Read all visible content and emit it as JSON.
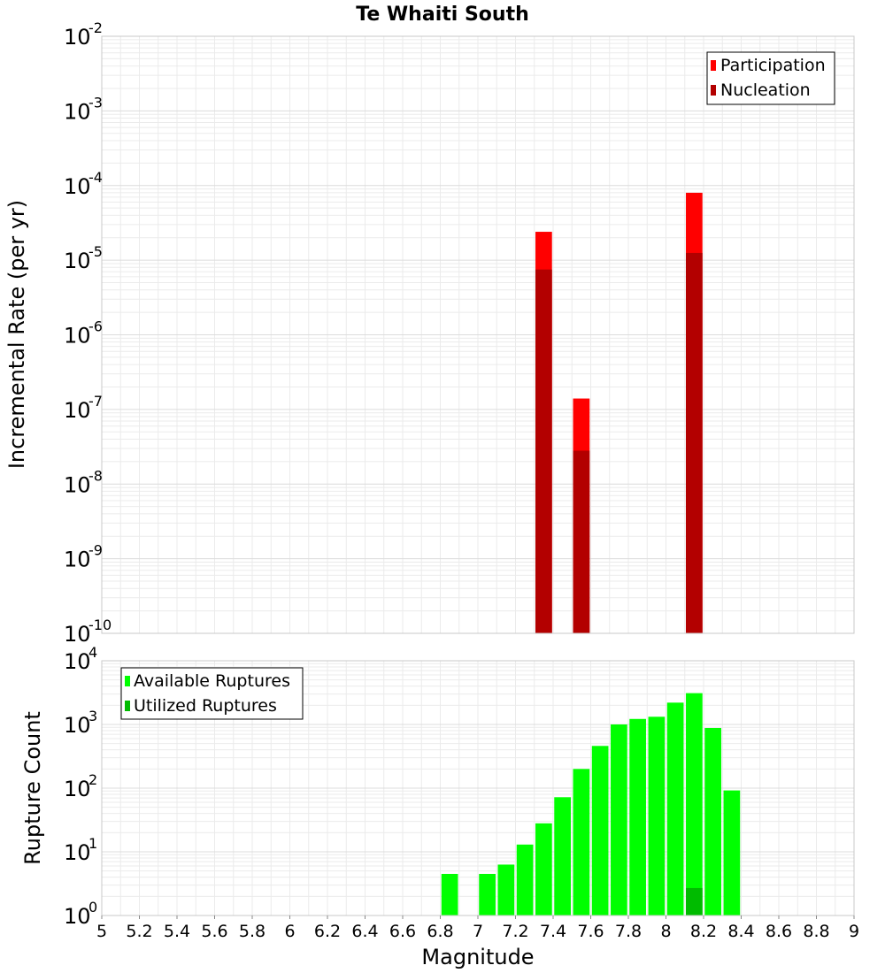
{
  "chart_data": [
    {
      "type": "bar",
      "title": "Te Whaiti South",
      "xlabel": "",
      "ylabel": "Incremental Rate (per yr)",
      "yscale": "log",
      "ylim_exponents": [
        -10,
        -2
      ],
      "xlim": [
        5,
        9
      ],
      "bin_width": 0.1,
      "legend_position": "top-right",
      "series": [
        {
          "name": "Participation",
          "color": "#ff0000",
          "x": [
            7.35,
            7.55,
            8.15
          ],
          "values": [
            2.4e-05,
            1.4e-07,
            8e-05
          ]
        },
        {
          "name": "Nucleation",
          "color": "#b30000",
          "x": [
            7.35,
            7.55,
            8.15
          ],
          "values": [
            7.5e-06,
            2.8e-08,
            1.25e-05
          ]
        }
      ]
    },
    {
      "type": "bar",
      "title": "",
      "xlabel": "Magnitude",
      "ylabel": "Rupture Count",
      "yscale": "log",
      "ylim_exponents": [
        0,
        4
      ],
      "xlim": [
        5,
        9
      ],
      "bin_width": 0.1,
      "legend_position": "top-left",
      "series": [
        {
          "name": "Available Ruptures",
          "color": "#00ff00",
          "x": [
            6.85,
            6.95,
            7.05,
            7.15,
            7.25,
            7.35,
            7.45,
            7.55,
            7.65,
            7.75,
            7.85,
            7.95,
            8.05,
            8.15,
            8.25,
            8.35
          ],
          "values": [
            4.5,
            1,
            4.5,
            6.3,
            13,
            28,
            72,
            200,
            460,
            1000,
            1220,
            1320,
            2200,
            3100,
            880,
            92
          ]
        },
        {
          "name": "Utilized Ruptures",
          "color": "#00bb00",
          "x": [
            7.35,
            7.55,
            8.15
          ],
          "values": [
            1,
            1,
            2.7
          ]
        }
      ]
    }
  ],
  "x_ticks": [
    "5",
    "5.2",
    "5.4",
    "5.6",
    "5.8",
    "6",
    "6.2",
    "6.4",
    "6.6",
    "6.8",
    "7",
    "7.2",
    "7.4",
    "7.6",
    "7.8",
    "8",
    "8.2",
    "8.4",
    "8.6",
    "8.8",
    "9"
  ],
  "top_y_ticks": {
    "base": "10",
    "exponents": [
      "-2",
      "-3",
      "-4",
      "-5",
      "-6",
      "-7",
      "-8",
      "-9",
      "-10"
    ]
  },
  "bottom_y_ticks": {
    "base": "10",
    "exponents": [
      "4",
      "3",
      "2",
      "1",
      "0"
    ]
  }
}
